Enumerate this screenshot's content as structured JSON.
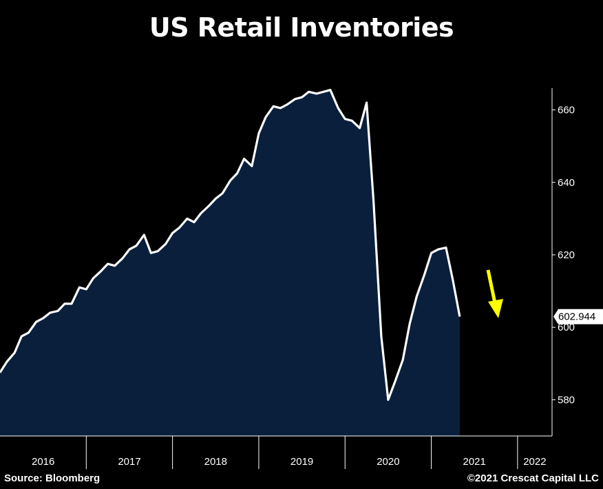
{
  "title": "US Retail Inventories",
  "source": "Source: Bloomberg",
  "copyright": "©2021 Crescat Capital LLC",
  "colors": {
    "background": "#000000",
    "area_fill": "#0a1f3c",
    "line": "#ffffff",
    "arrow": "#ffff00"
  },
  "chart_data": {
    "type": "area",
    "title": "US Retail Inventories",
    "xlabel": "",
    "ylabel": "",
    "ylim": [
      570,
      666
    ],
    "xlim": [
      2016.0,
      2022.4
    ],
    "y_ticks": [
      580,
      600,
      620,
      640,
      660
    ],
    "x_year_labels": [
      "2016",
      "2017",
      "2018",
      "2019",
      "2020",
      "2021",
      "2022"
    ],
    "grid": false,
    "legend": "none",
    "last_value_label": "602.944",
    "annotation": "downward arrow",
    "series": [
      {
        "x": [
          2016.0,
          2016.08,
          2016.17,
          2016.25,
          2016.33,
          2016.42,
          2016.5,
          2016.58,
          2016.67,
          2016.75,
          2016.83,
          2016.92,
          2017.0,
          2017.08,
          2017.17,
          2017.25,
          2017.33,
          2017.42,
          2017.5,
          2017.58,
          2017.67,
          2017.75,
          2017.83,
          2017.92,
          2018.0,
          2018.08,
          2018.17,
          2018.25,
          2018.33,
          2018.42,
          2018.5,
          2018.58,
          2018.67,
          2018.75,
          2018.83,
          2018.92,
          2019.0,
          2019.08,
          2019.17,
          2019.25,
          2019.33,
          2019.42,
          2019.5,
          2019.58,
          2019.67,
          2019.75,
          2019.83,
          2019.92,
          2020.0,
          2020.08,
          2020.17,
          2020.25,
          2020.33,
          2020.42,
          2020.5,
          2020.58,
          2020.67,
          2020.75,
          2020.83,
          2020.92,
          2021.0,
          2021.08,
          2021.17,
          2021.25,
          2021.33
        ],
        "y": [
          587.5,
          590.5,
          593.0,
          597.5,
          598.5,
          601.5,
          602.5,
          604.0,
          604.5,
          606.5,
          606.5,
          611.0,
          610.5,
          613.5,
          615.5,
          617.5,
          617.0,
          619.0,
          621.5,
          622.5,
          625.5,
          620.5,
          621.0,
          623.0,
          626.0,
          627.5,
          630.0,
          629.0,
          631.5,
          633.5,
          635.5,
          637.0,
          640.5,
          642.5,
          646.5,
          644.5,
          653.5,
          658.0,
          661.0,
          660.5,
          661.5,
          663.0,
          663.5,
          665.0,
          664.5,
          665.0,
          665.5,
          660.5,
          657.5,
          657.0,
          655.0,
          662.0,
          635.0,
          597.5,
          580.0,
          585.0,
          591.0,
          601.0,
          608.5,
          614.5,
          620.5,
          621.5,
          622.0,
          613.0,
          602.944
        ]
      }
    ]
  }
}
